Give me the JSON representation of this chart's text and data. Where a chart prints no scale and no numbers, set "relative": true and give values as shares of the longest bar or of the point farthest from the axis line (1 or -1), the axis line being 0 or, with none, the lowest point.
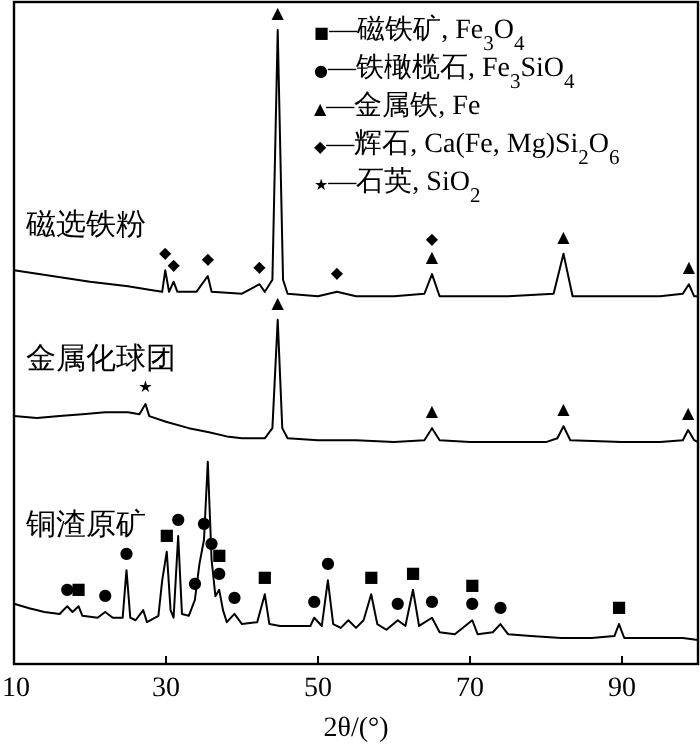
{
  "chart_data": {
    "type": "line",
    "relative": true,
    "xlabel": "2θ/(°)",
    "xlim": [
      10,
      100
    ],
    "xticks": [
      10,
      30,
      50,
      70,
      90
    ],
    "series": [
      {
        "name": "磁选铁粉",
        "color": "#000000",
        "x": [
          10,
          15,
          20,
          25,
          28,
          29.5,
          29.9,
          30.4,
          31.0,
          31.5,
          34,
          35.5,
          36,
          40,
          42.3,
          43,
          44.0,
          44.7,
          45.4,
          46,
          50,
          52.5,
          55,
          60,
          64,
          65.0,
          66,
          70,
          75,
          81,
          82.3,
          83.5,
          90,
          95,
          98,
          98.8,
          99.5,
          100
        ],
        "values": [
          0.621,
          0.612,
          0.603,
          0.596,
          0.59,
          0.587,
          0.621,
          0.587,
          0.603,
          0.587,
          0.587,
          0.612,
          0.587,
          0.584,
          0.599,
          0.587,
          0.606,
          1.0,
          0.606,
          0.584,
          0.58,
          0.587,
          0.58,
          0.58,
          0.584,
          0.615,
          0.58,
          0.58,
          0.58,
          0.584,
          0.647,
          0.58,
          0.58,
          0.58,
          0.584,
          0.599,
          0.58,
          0.58
        ]
      },
      {
        "name": "金属化球团",
        "color": "#000000",
        "x": [
          10,
          13,
          16,
          19,
          22,
          25,
          26.5,
          27.3,
          27.8,
          30,
          33,
          35.5,
          38,
          40,
          43,
          44.0,
          44.7,
          45.3,
          46,
          50,
          55,
          60,
          64.0,
          65.0,
          66.0,
          70,
          75,
          80,
          81.5,
          82.3,
          83.2,
          90,
          95,
          98,
          98.7,
          99.5,
          100
        ],
        "values": [
          0.391,
          0.388,
          0.391,
          0.394,
          0.397,
          0.397,
          0.394,
          0.41,
          0.391,
          0.382,
          0.372,
          0.366,
          0.359,
          0.356,
          0.356,
          0.372,
          0.543,
          0.372,
          0.356,
          0.353,
          0.353,
          0.35,
          0.353,
          0.372,
          0.353,
          0.35,
          0.35,
          0.35,
          0.356,
          0.375,
          0.353,
          0.35,
          0.35,
          0.353,
          0.369,
          0.353,
          0.35
        ]
      },
      {
        "name": "铜渣原矿",
        "color": "#000000",
        "x": [
          10,
          12,
          14,
          16,
          17,
          17.7,
          18.5,
          19,
          21,
          22,
          23,
          24.3,
          24.8,
          25.3,
          26,
          27,
          27.5,
          29,
          29.5,
          30.1,
          30.6,
          31.0,
          31.6,
          32.1,
          33,
          33.8,
          34.4,
          35.0,
          35.5,
          36.0,
          36.5,
          37.0,
          37.5,
          38,
          39,
          40,
          42,
          43.0,
          43.6,
          45,
          47,
          49,
          49.5,
          50.5,
          51.3,
          52,
          53,
          54,
          55,
          56,
          57.0,
          57.8,
          59,
          60.5,
          61.5,
          62.5,
          63.3,
          65,
          66,
          68,
          70.3,
          71,
          73,
          74,
          75,
          78,
          82,
          86,
          89,
          89.6,
          90.3,
          94,
          98,
          100
        ],
        "values": [
          0.095,
          0.088,
          0.082,
          0.079,
          0.091,
          0.082,
          0.091,
          0.076,
          0.073,
          0.082,
          0.073,
          0.073,
          0.148,
          0.073,
          0.069,
          0.085,
          0.066,
          0.076,
          0.132,
          0.177,
          0.085,
          0.073,
          0.202,
          0.079,
          0.076,
          0.101,
          0.158,
          0.196,
          0.319,
          0.164,
          0.107,
          0.117,
          0.085,
          0.066,
          0.079,
          0.063,
          0.066,
          0.11,
          0.063,
          0.06,
          0.06,
          0.06,
          0.073,
          0.06,
          0.132,
          0.063,
          0.057,
          0.069,
          0.057,
          0.069,
          0.11,
          0.063,
          0.054,
          0.069,
          0.06,
          0.117,
          0.06,
          0.073,
          0.05,
          0.047,
          0.069,
          0.047,
          0.05,
          0.063,
          0.047,
          0.044,
          0.041,
          0.041,
          0.044,
          0.063,
          0.041,
          0.041,
          0.041,
          0.038
        ]
      }
    ],
    "annotations": [
      "■—磁铁矿, Fe$_{3}$O$_{4}$",
      "●—铁橄榄石, Fe$_{3}$SiO$_{4}$",
      "▲—金属铁, Fe",
      "◆—辉石, Ca(Fe, Mg)Si$_{2}$O$_{6}$",
      "★—石英, SiO$_{2}$",
      {
        "text": "◆",
        "x": 29.9,
        "y": 0.621
      },
      {
        "text": "◆",
        "x": 31.0,
        "y": 0.603
      },
      {
        "text": "◆",
        "x": 35.5,
        "y": 0.612
      },
      {
        "text": "◆",
        "x": 42.3,
        "y": 0.599
      },
      {
        "text": "▲",
        "x": 44.7,
        "y": 1.0
      },
      {
        "text": "◆",
        "x": 52.5,
        "y": 0.59
      },
      {
        "text": "▲",
        "x": 65.0,
        "y": 0.615
      },
      {
        "text": "◆",
        "x": 65.0,
        "y": 0.615
      },
      {
        "text": "▲",
        "x": 82.3,
        "y": 0.647
      },
      {
        "text": "▲",
        "x": 98.8,
        "y": 0.599
      },
      {
        "text": "★",
        "x": 27.3,
        "y": 0.41
      },
      {
        "text": "▲",
        "x": 44.7,
        "y": 0.543
      },
      {
        "text": "▲",
        "x": 65.0,
        "y": 0.372
      },
      {
        "text": "▲",
        "x": 82.3,
        "y": 0.375
      },
      {
        "text": "▲",
        "x": 98.7,
        "y": 0.369
      },
      {
        "text": "●",
        "x": 17,
        "y": 0.091
      },
      {
        "text": "■",
        "x": 18.5,
        "y": 0.091
      },
      {
        "text": "●",
        "x": 22,
        "y": 0.082
      },
      {
        "text": "●",
        "x": 24.8,
        "y": 0.148
      },
      {
        "text": "■",
        "x": 30.1,
        "y": 0.177
      },
      {
        "text": "●",
        "x": 31.6,
        "y": 0.202
      },
      {
        "text": "●",
        "x": 33.8,
        "y": 0.101
      },
      {
        "text": "●",
        "x": 35.0,
        "y": 0.196
      },
      {
        "text": "●",
        "x": 36.0,
        "y": 0.164
      },
      {
        "text": "●",
        "x": 37.0,
        "y": 0.117
      },
      {
        "text": "■",
        "x": 37.0,
        "y": 0.117
      },
      {
        "text": "●",
        "x": 39,
        "y": 0.079
      },
      {
        "text": "■",
        "x": 43.0,
        "y": 0.11
      },
      {
        "text": "●",
        "x": 49.5,
        "y": 0.073
      },
      {
        "text": "●",
        "x": 51.3,
        "y": 0.132
      },
      {
        "text": "■",
        "x": 57.0,
        "y": 0.11
      },
      {
        "text": "●",
        "x": 60.5,
        "y": 0.069
      },
      {
        "text": "■",
        "x": 62.5,
        "y": 0.117
      },
      {
        "text": "●",
        "x": 65,
        "y": 0.073
      },
      {
        "text": "●",
        "x": 70.3,
        "y": 0.069
      },
      {
        "text": "■",
        "x": 70.3,
        "y": 0.069
      },
      {
        "text": "●",
        "x": 74,
        "y": 0.063
      },
      {
        "text": "■",
        "x": 89.6,
        "y": 0.063
      }
    ]
  }
}
